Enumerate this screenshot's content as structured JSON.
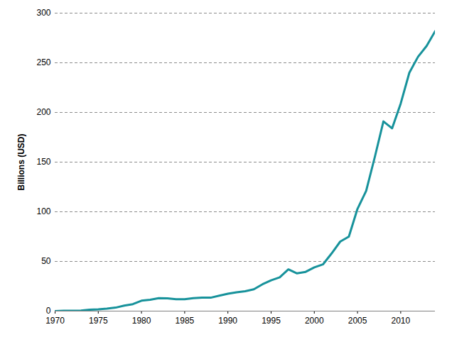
{
  "chart_data": {
    "type": "line",
    "y_label": "Billions (USD)",
    "x": [
      1970,
      1971,
      1972,
      1973,
      1974,
      1975,
      1976,
      1977,
      1978,
      1979,
      1980,
      1981,
      1982,
      1983,
      1984,
      1985,
      1986,
      1987,
      1988,
      1989,
      1990,
      1991,
      1992,
      1993,
      1994,
      1995,
      1996,
      1997,
      1998,
      1999,
      2000,
      2001,
      2002,
      2003,
      2004,
      2005,
      2006,
      2007,
      2008,
      2009,
      2010,
      2011,
      2012,
      2013,
      2014
    ],
    "values": [
      0,
      0.3,
      0.4,
      0.5,
      1.5,
      1.8,
      2.5,
      3.5,
      5.5,
      7,
      10.5,
      11.5,
      13,
      12.8,
      12,
      12,
      13,
      13.5,
      13.5,
      15.5,
      17.5,
      19,
      20,
      22,
      27,
      31,
      34,
      42,
      38,
      39.5,
      44,
      47,
      58,
      70,
      75,
      103,
      121,
      155,
      191,
      184,
      209,
      240,
      256,
      267,
      282
    ],
    "color": "#17929b",
    "xlim": [
      1970,
      2014
    ],
    "xticks": [
      1970,
      1975,
      1980,
      1985,
      1990,
      1995,
      2000,
      2005,
      2010
    ],
    "ylim": [
      0,
      300
    ],
    "yticks": [
      0,
      50,
      100,
      150,
      200,
      250,
      300
    ],
    "grid": true
  }
}
